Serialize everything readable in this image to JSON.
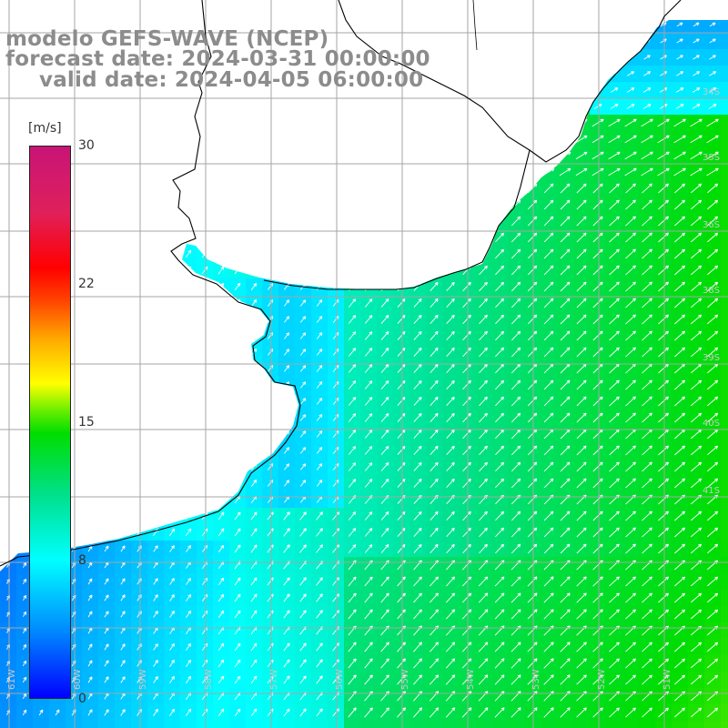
{
  "header": {
    "line1": "modelo GEFS-WAVE (NCEP)",
    "line2": "forecast date: 2024-03-31 00:00:00",
    "line3": "valid date: 2024-04-05 06:00:00"
  },
  "colorbar": {
    "unit": "[m/s]",
    "min": 0,
    "max": 30,
    "ticks": [
      {
        "value": 30,
        "label": "30"
      },
      {
        "value": 22,
        "label": "22"
      },
      {
        "value": 15,
        "label": "15"
      },
      {
        "value": 8,
        "label": "8"
      },
      {
        "value": 0,
        "label": "0"
      }
    ],
    "colors": [
      "#0000ff",
      "#0088ff",
      "#00ffff",
      "#00e08a",
      "#00dd00",
      "#ffff00",
      "#ff0000",
      "#c81478"
    ]
  },
  "map": {
    "lon_range": [
      -62,
      -51
    ],
    "lat_range": [
      -41.5,
      -30.5
    ],
    "gridline_color": "#a6a6a6",
    "coastline_color": "#000000",
    "vector_color": "#ffffff",
    "lon_labels": [
      "61W",
      "60W",
      "59W",
      "58W",
      "57W",
      "56W",
      "55W",
      "54W",
      "53W",
      "52W",
      "51W"
    ],
    "lat_labels": [
      "34S",
      "35S",
      "36S",
      "38S",
      "39S",
      "40S",
      "41S"
    ]
  }
}
